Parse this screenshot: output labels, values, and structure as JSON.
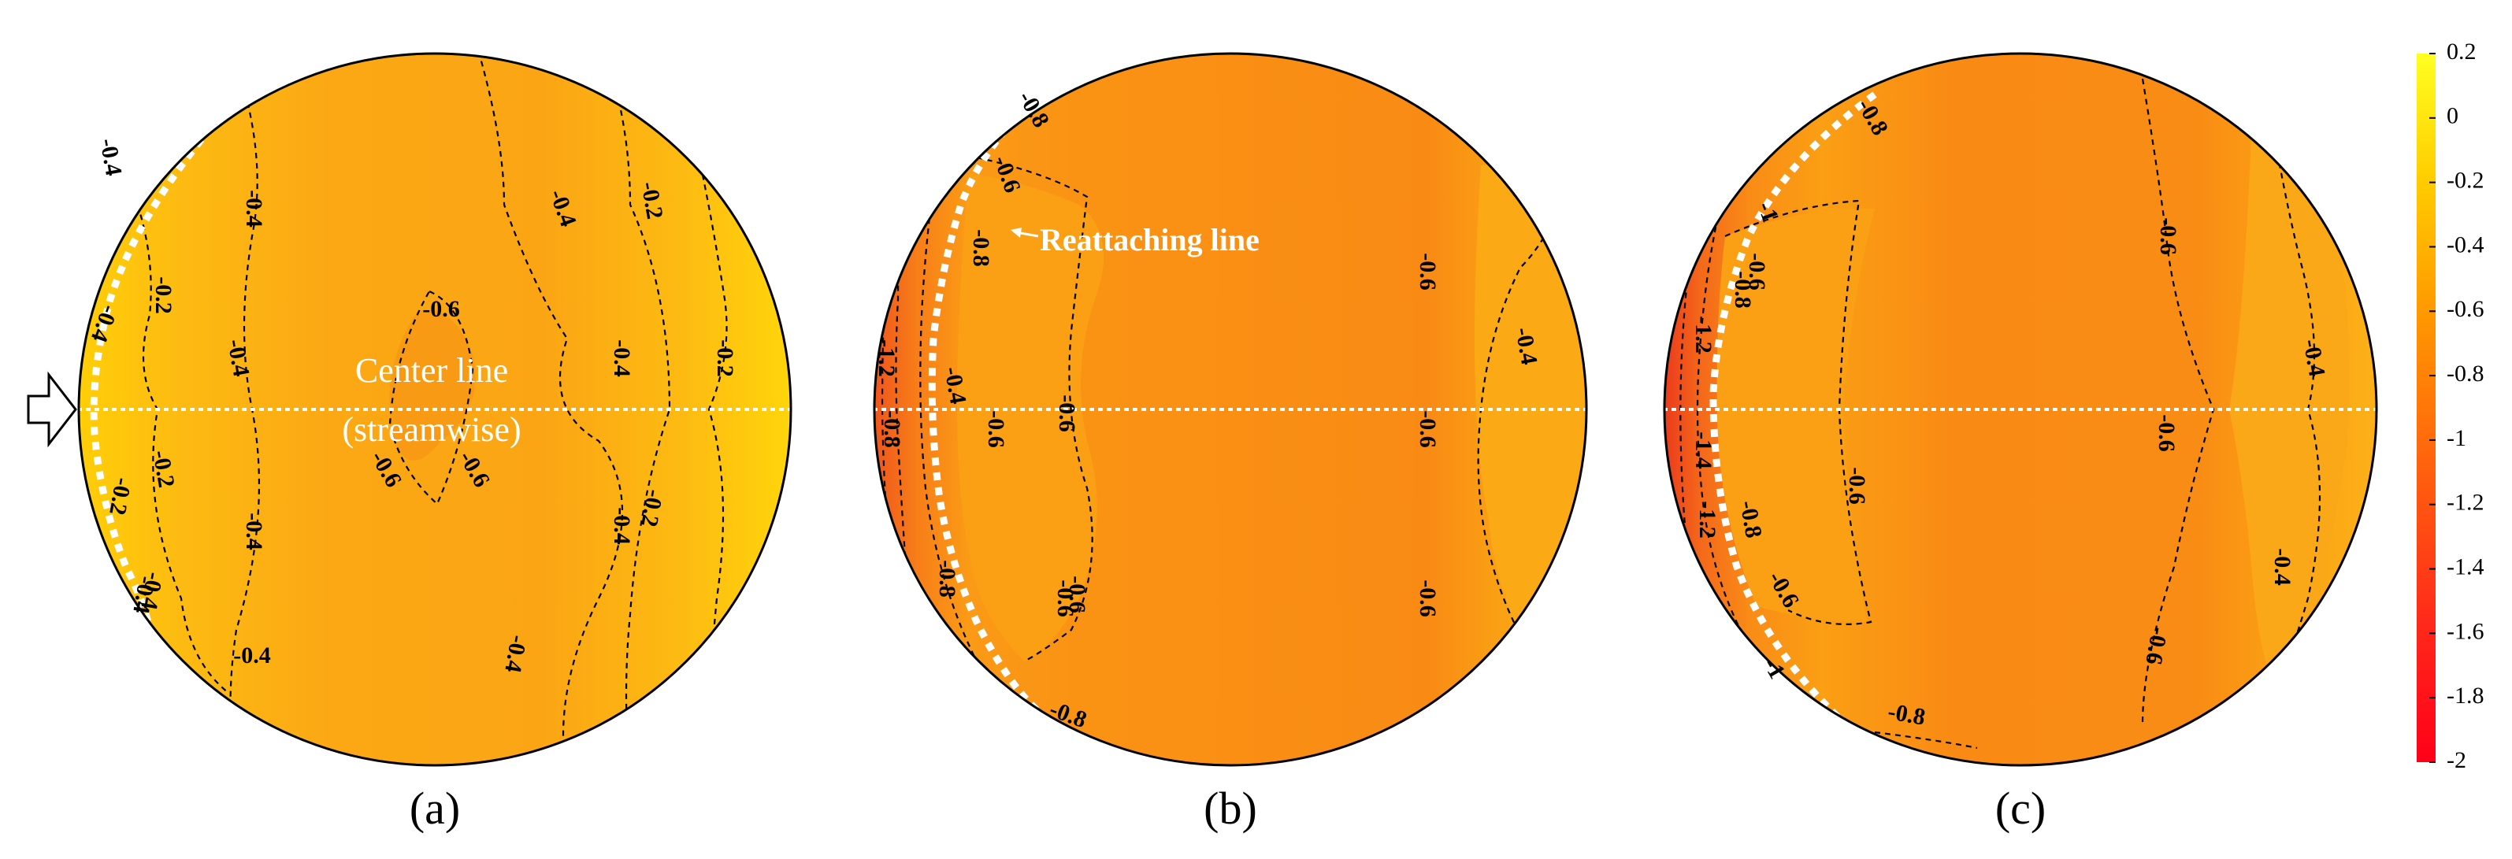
{
  "chart_data": [
    {
      "type": "heatmap",
      "panel_label": "(a)",
      "annotations": {
        "center_line_1": "Center line",
        "center_line_2": "(streamwise)"
      },
      "contour_labels": [
        {
          "value": "-0.4",
          "rot": 80
        },
        {
          "value": "-0.4",
          "rot": 90
        },
        {
          "value": "-0.4",
          "rot": 80
        },
        {
          "value": "-0.2",
          "rot": 90
        },
        {
          "value": "-0.6",
          "rot": 0
        },
        {
          "value": "-0.4",
          "rot": 70
        },
        {
          "value": "-0.2",
          "rot": 80
        },
        {
          "value": "-0.4",
          "rot": 90
        },
        {
          "value": "-0.6",
          "rot": 60
        },
        {
          "value": "-0.4",
          "rot": 90
        },
        {
          "value": "-0.2",
          "rot": 80
        },
        {
          "value": "-0.2",
          "rot": 90
        },
        {
          "value": "-0.6",
          "rot": 60
        },
        {
          "value": "-0.4",
          "rot": 90
        },
        {
          "value": "-0.4",
          "rot": 100
        },
        {
          "value": "-0.2",
          "rot": 100
        },
        {
          "value": "-0.2",
          "rot": 100
        },
        {
          "value": "-0.4",
          "rot": 100
        },
        {
          "value": "-0.4",
          "rot": 0
        },
        {
          "value": "-0.4",
          "rot": 110
        },
        {
          "value": "-0.4",
          "rot": 100
        }
      ]
    },
    {
      "type": "heatmap",
      "panel_label": "(b)",
      "annotations": {
        "reattaching_line": "Reattaching line"
      },
      "contour_labels": [
        {
          "value": "-0.8",
          "rot": 60
        },
        {
          "value": "-0.6",
          "rot": 70
        },
        {
          "value": "-0.8",
          "rot": 90
        },
        {
          "value": "-0.6",
          "rot": 90
        },
        {
          "value": "-1.2",
          "rot": 90
        },
        {
          "value": "-0.4",
          "rot": 80
        },
        {
          "value": "-0.8",
          "rot": 90
        },
        {
          "value": "-0.6",
          "rot": 90
        },
        {
          "value": "-0.6",
          "rot": 90
        },
        {
          "value": "-0.6",
          "rot": 90
        },
        {
          "value": "-0.4",
          "rot": 80
        },
        {
          "value": "-0.6",
          "rot": 90
        },
        {
          "value": "-0.6",
          "rot": 90
        },
        {
          "value": "-0.6",
          "rot": 90
        },
        {
          "value": "-0.8",
          "rot": 90
        },
        {
          "value": "-0.8",
          "rot": 20
        }
      ]
    },
    {
      "type": "heatmap",
      "panel_label": "(c)",
      "contour_labels": [
        {
          "value": "-0.8",
          "rot": 60
        },
        {
          "value": "-1",
          "rot": 70
        },
        {
          "value": "-0.8",
          "rot": 90
        },
        {
          "value": "-1.2",
          "rot": 90
        },
        {
          "value": "-0.6",
          "rot": 90
        },
        {
          "value": "-0.6",
          "rot": 90
        },
        {
          "value": "-0.4",
          "rot": 80
        },
        {
          "value": "-1.4",
          "rot": 90
        },
        {
          "value": "-0.6",
          "rot": 90
        },
        {
          "value": "-0.6",
          "rot": 90
        },
        {
          "value": "-1.2",
          "rot": 90
        },
        {
          "value": "-0.8",
          "rot": 80
        },
        {
          "value": "-0.6",
          "rot": 60
        },
        {
          "value": "-0.4",
          "rot": 90
        },
        {
          "value": "-1",
          "rot": 60
        },
        {
          "value": "-0.6",
          "rot": 100
        },
        {
          "value": "-0.8",
          "rot": 10
        }
      ]
    }
  ],
  "colorbar": {
    "min": -2,
    "max": 0.2,
    "ticks": [
      "0.2",
      "0",
      "-0.2",
      "-0.4",
      "-0.6",
      "-0.8",
      "-1",
      "-1.2",
      "-1.4",
      "-1.6",
      "-1.8",
      "-2"
    ],
    "colors": [
      "#ffff22",
      "#ffcc00",
      "#ff9a00",
      "#ff6a0c",
      "#ff2a1a",
      "#ff0018"
    ]
  },
  "flow_arrow_icon": "arrow-right-icon"
}
